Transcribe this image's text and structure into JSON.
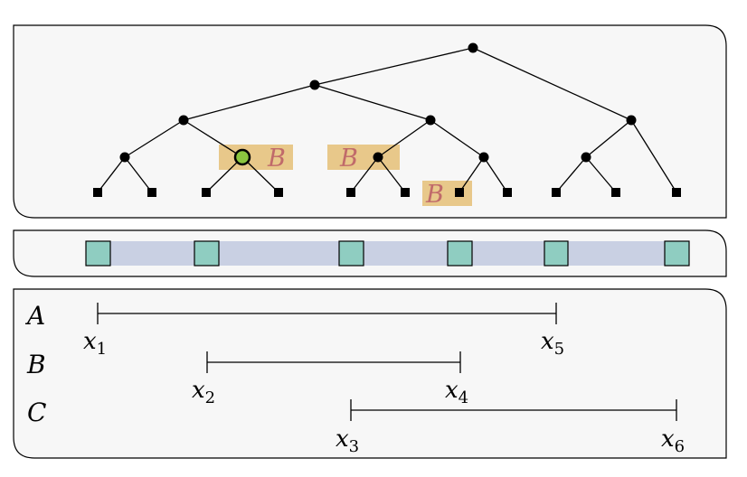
{
  "tree_highlight_label": "B",
  "tree_highlights": [
    {
      "label": "B"
    },
    {
      "label": "B"
    },
    {
      "label": "B"
    }
  ],
  "intervals": [
    {
      "name": "A",
      "start_label": "x",
      "start_sub": "1",
      "end_label": "x",
      "end_sub": "5"
    },
    {
      "name": "B",
      "start_label": "x",
      "start_sub": "2",
      "end_label": "x",
      "end_sub": "4"
    },
    {
      "name": "C",
      "start_label": "x",
      "start_sub": "3",
      "end_label": "x",
      "end_sub": "6"
    }
  ],
  "colors": {
    "highlight": "#e8c88a",
    "highlight_text": "#c06a6a",
    "selected_node": "#8cc63f",
    "elementary_cell": "#8fcdc1",
    "gap_cell": "#c9d0e3"
  }
}
